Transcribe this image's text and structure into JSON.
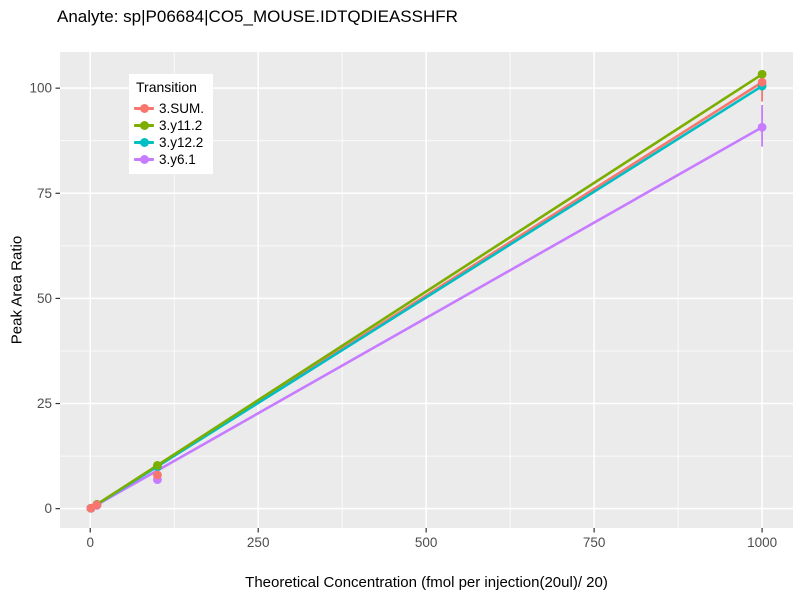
{
  "chart_data": {
    "type": "line",
    "title": "Analyte: sp|P06684|CO5_MOUSE.IDTQDIEASSHFR",
    "xlabel": "Theoretical Concentration (fmol per injection(20ul)/ 20)",
    "ylabel": "Peak Area Ratio",
    "legend_title": "Transition",
    "legend_position": "inside-top-left",
    "grid": true,
    "panel_bg": "#EBEBEB",
    "grid_color": "#FFFFFF",
    "tick_color": "#333333",
    "tick_label_color": "#4D4D4D",
    "xlim": [
      -45,
      1046
    ],
    "ylim": [
      -4.6,
      108.6
    ],
    "x_ticks": [
      0,
      250,
      500,
      750,
      1000
    ],
    "y_ticks": [
      0,
      25,
      50,
      75,
      100
    ],
    "x_minor_ticks": [
      125,
      375,
      625,
      875
    ],
    "y_minor_ticks": [
      12.5,
      37.5,
      62.5,
      87.5
    ],
    "series": [
      {
        "name": "3.SUM.",
        "color": "#F8766D",
        "line": [
          [
            1,
            0.1
          ],
          [
            1000,
            101.4
          ]
        ],
        "points": [
          [
            1,
            0.1
          ],
          [
            10,
            0.9
          ],
          [
            100,
            8.0
          ],
          [
            1000,
            101.4
          ]
        ],
        "error_bars": [
          {
            "x": 100,
            "lo": 6.9,
            "hi": 10.2
          },
          {
            "x": 1000,
            "lo": 96.8,
            "hi": 102.8
          }
        ]
      },
      {
        "name": "3.y11.2",
        "color": "#7CAE00",
        "line": [
          [
            1,
            0.1
          ],
          [
            1000,
            103.3
          ]
        ],
        "points": [
          [
            1,
            0.1
          ],
          [
            10,
            1.0
          ],
          [
            100,
            10.3
          ],
          [
            1000,
            103.3
          ]
        ],
        "error_bars": []
      },
      {
        "name": "3.y12.2",
        "color": "#00BFC4",
        "line": [
          [
            1,
            0.1
          ],
          [
            1000,
            100.5
          ]
        ],
        "points": [
          [
            1,
            0.1
          ],
          [
            10,
            1.0
          ],
          [
            100,
            10.0
          ],
          [
            1000,
            100.5
          ]
        ],
        "error_bars": []
      },
      {
        "name": "3.y6.1",
        "color": "#C77CFF",
        "line": [
          [
            1,
            0.1
          ],
          [
            1000,
            90.7
          ]
        ],
        "points": [
          [
            1,
            0.1
          ],
          [
            10,
            0.8
          ],
          [
            100,
            6.9
          ],
          [
            1000,
            90.7
          ]
        ],
        "error_bars": [
          {
            "x": 1000,
            "lo": 86.1,
            "hi": 96.0
          }
        ]
      }
    ],
    "line_draw_order": [
      0,
      3,
      2,
      1
    ],
    "point_draw_order": [
      2,
      1,
      3,
      0
    ]
  }
}
